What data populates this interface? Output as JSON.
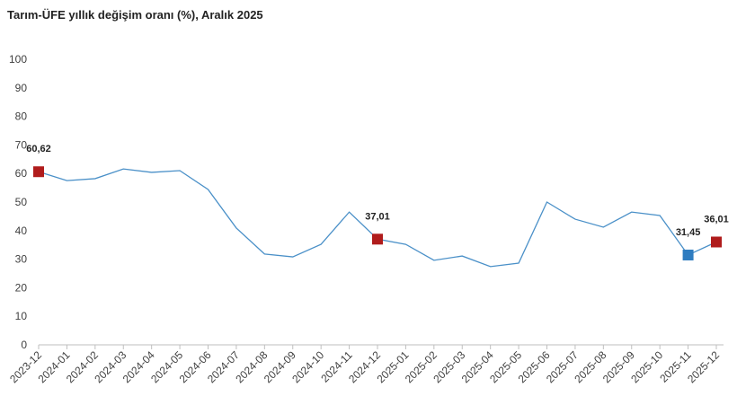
{
  "chart_data": {
    "type": "line",
    "title": "Tarım-ÜFE yıllık değişim oranı (%), Aralık 2025",
    "categories": [
      "2023-12",
      "2024-01",
      "2024-02",
      "2024-03",
      "2024-04",
      "2024-05",
      "2024-06",
      "2024-07",
      "2024-08",
      "2024-09",
      "2024-10",
      "2024-11",
      "2024-12",
      "2025-01",
      "2025-02",
      "2025-03",
      "2025-04",
      "2025-05",
      "2025-06",
      "2025-07",
      "2025-08",
      "2025-09",
      "2025-10",
      "2025-11",
      "2025-12"
    ],
    "series": [
      {
        "color": "#4a90c8",
        "values": [
          60.62,
          57.5,
          58.2,
          61.6,
          60.4,
          61.0,
          54.4,
          40.9,
          31.8,
          30.8,
          35.2,
          46.5,
          37.01,
          35.2,
          29.6,
          31.1,
          27.4,
          28.6,
          50.0,
          44.0,
          41.2,
          46.5,
          45.3,
          31.45,
          36.01
        ],
        "value_labels": [
          "60,62",
          null,
          null,
          null,
          null,
          null,
          null,
          null,
          null,
          null,
          null,
          null,
          "37,01",
          null,
          null,
          null,
          null,
          null,
          null,
          null,
          null,
          null,
          null,
          "31,45",
          "36,01"
        ],
        "marker_colors": [
          "#b01c1c",
          null,
          null,
          null,
          null,
          null,
          null,
          null,
          null,
          null,
          null,
          null,
          "#b01c1c",
          null,
          null,
          null,
          null,
          null,
          null,
          null,
          null,
          null,
          null,
          "#2e7cc0",
          "#b01c1c"
        ]
      }
    ],
    "ylim": [
      0,
      100
    ],
    "yticks": [
      0,
      10,
      20,
      30,
      40,
      50,
      60,
      70,
      80,
      90,
      100
    ],
    "grid": false
  }
}
